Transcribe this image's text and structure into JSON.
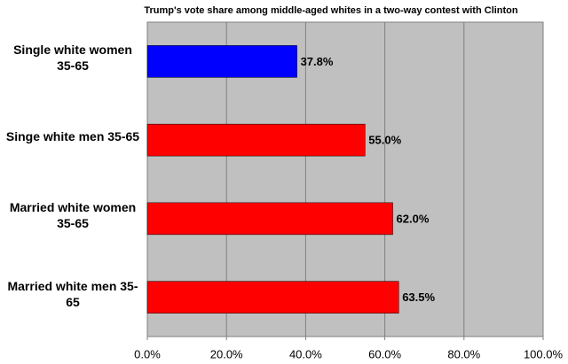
{
  "chart_data": {
    "type": "hbar",
    "title": "Trump's vote share among middle-aged whites in a two-way contest with Clinton",
    "categories": [
      "Single white women 35-65",
      "Singe white men 35-65",
      "Married white women 35-65",
      "Married white men 35-65"
    ],
    "values": [
      37.8,
      55.0,
      62.0,
      63.5
    ],
    "value_labels": [
      "37.8%",
      "55.0%",
      "62.0%",
      "63.5%"
    ],
    "colors": [
      "#0000ff",
      "#ff0000",
      "#ff0000",
      "#ff0000"
    ],
    "xlim": [
      0,
      100
    ],
    "xticks": [
      {
        "value": 0,
        "label": "0.0%"
      },
      {
        "value": 20,
        "label": "20.0%"
      },
      {
        "value": 40,
        "label": "40.0%"
      },
      {
        "value": 60,
        "label": "60.0%"
      },
      {
        "value": 80,
        "label": "80.0%"
      },
      {
        "value": 100,
        "label": "100.0%"
      }
    ],
    "grid": true
  }
}
